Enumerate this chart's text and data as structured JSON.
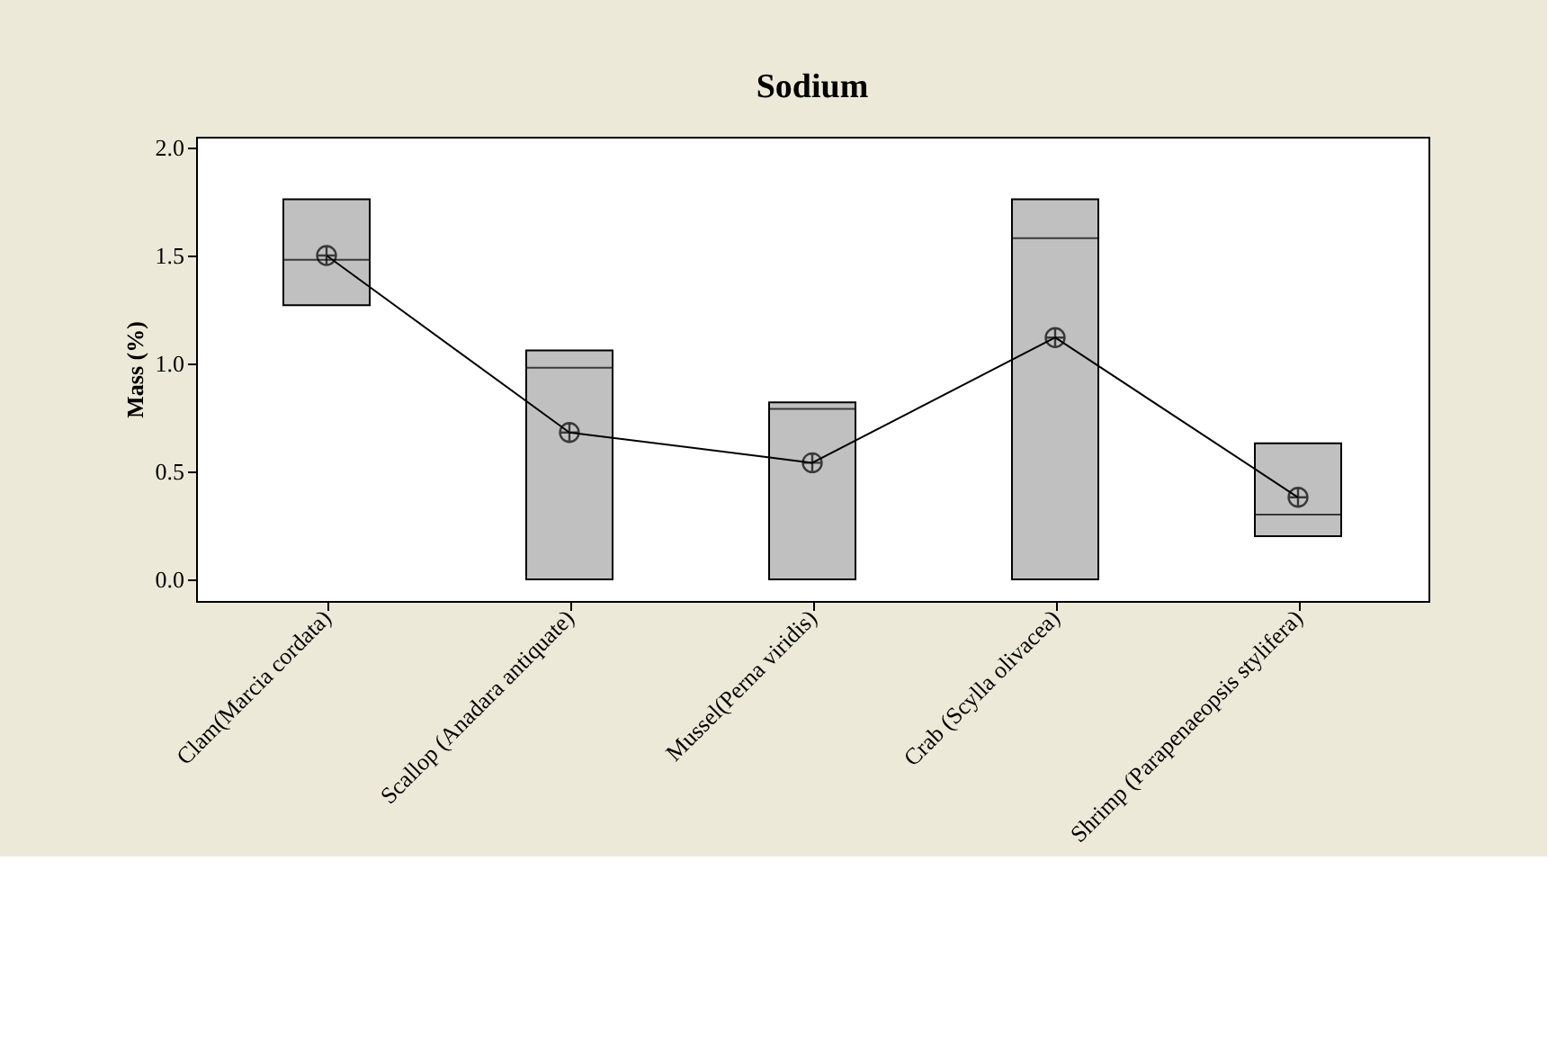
{
  "chart_data": {
    "type": "box",
    "title": "Sodium",
    "ylabel": "Mass (%)",
    "categories": [
      "Clam(Marcia cordata)",
      "Scallop (Anadara antiquate)",
      "Mussel(Perna viridis)",
      "Crab (Scylla olivacea)",
      "Shrimp (Parapenaeopsis stylifera)"
    ],
    "boxes": [
      {
        "low": 1.27,
        "q1": 1.27,
        "median": 1.48,
        "q3": 1.76,
        "high": 1.76
      },
      {
        "low": 0.0,
        "q1": 0.0,
        "median": 0.98,
        "q3": 1.06,
        "high": 1.06
      },
      {
        "low": 0.0,
        "q1": 0.0,
        "median": 0.79,
        "q3": 0.82,
        "high": 0.82
      },
      {
        "low": 0.0,
        "q1": 0.0,
        "median": 1.58,
        "q3": 1.76,
        "high": 1.76
      },
      {
        "low": 0.2,
        "q1": 0.2,
        "median": 0.3,
        "q3": 0.63,
        "high": 0.63
      }
    ],
    "color": "#c0c0c0",
    "ylim": [
      -0.1,
      2.05
    ],
    "yticks": [
      {
        "value": 0,
        "label": "0.0"
      },
      {
        "value": 0.5,
        "label": "0.5"
      },
      {
        "value": 1,
        "label": "1.0"
      },
      {
        "value": 1.5,
        "label": "1.5"
      },
      {
        "value": 2,
        "label": "2.0"
      }
    ],
    "series": [
      {
        "type": "line",
        "color": "#000000",
        "values": [
          1.5,
          0.68,
          0.54,
          1.12,
          0.38
        ]
      }
    ],
    "marker": "cross",
    "line_style": "solid",
    "grid": false
  }
}
